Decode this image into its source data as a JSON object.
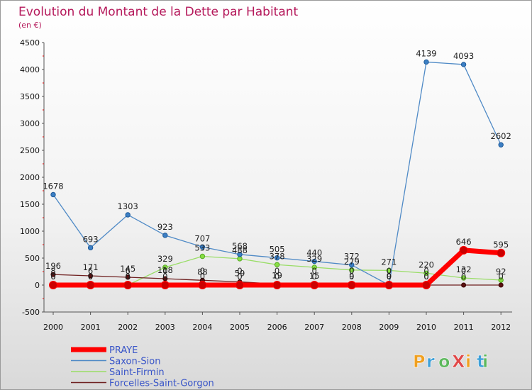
{
  "chart_data": {
    "type": "line",
    "title": "Evolution du Montant de la Dette par Habitant",
    "subtitle": "(en €)",
    "xlabel": "",
    "ylabel": "",
    "ylim": [
      -500,
      4500
    ],
    "yticks": [
      "-500",
      "0",
      "500",
      "1000",
      "1500",
      "2000",
      "2500",
      "3000",
      "3500",
      "4000",
      "4500"
    ],
    "x": [
      "2000",
      "2001",
      "2002",
      "2003",
      "2004",
      "2005",
      "2006",
      "2007",
      "2008",
      "2009",
      "2010",
      "2011",
      "2012"
    ],
    "grid": false,
    "legend_position": "bottom-left",
    "series": [
      {
        "name": "PRAYE",
        "color": "#ff0000",
        "values": [
          0,
          0,
          0,
          0,
          0,
          0,
          0,
          0,
          0,
          0,
          0,
          646,
          595
        ],
        "labels": [
          "0",
          "0",
          "0",
          "0",
          "0",
          "0",
          "0",
          "0",
          "0",
          "0",
          "0",
          "646",
          "595"
        ]
      },
      {
        "name": "Saxon-Sion",
        "color": "#4f8ac6",
        "values": [
          1678,
          693,
          1303,
          923,
          707,
          568,
          505,
          440,
          372,
          0,
          4139,
          4093,
          2602
        ],
        "labels": [
          "1678",
          "693",
          "1303",
          "923",
          "707",
          "568",
          "505",
          "440",
          "372",
          "0",
          "4139",
          "4093",
          "2602"
        ]
      },
      {
        "name": "Saint-Firmin",
        "color": "#99dd66",
        "values": [
          0,
          0,
          0,
          329,
          533,
          488,
          378,
          329,
          279,
          271,
          220,
          132,
          92
        ],
        "labels": [
          "0",
          "0",
          "0",
          "329",
          "533",
          "488",
          "378",
          "329",
          "279",
          "271",
          "220",
          "132",
          "92"
        ]
      },
      {
        "name": "Forcelles-Saint-Gorgon",
        "color": "#6e1f1f",
        "values": [
          196,
          171,
          145,
          118,
          88,
          59,
          19,
          15,
          9,
          9,
          0,
          0,
          0
        ],
        "labels": [
          "196",
          "171",
          "145",
          "118",
          "88",
          "59",
          "19",
          "15",
          "9",
          "9",
          "0",
          "0",
          "0"
        ]
      }
    ],
    "extra_labels": [
      "8",
      "6",
      "6",
      "0",
      "0",
      "0",
      "0",
      "0",
      "0",
      "0",
      "0",
      "0"
    ]
  },
  "watermark": "ProXiti",
  "watermark_colors": [
    "#f0a020",
    "#3fa0d8",
    "#5cb85c",
    "#e04848"
  ]
}
